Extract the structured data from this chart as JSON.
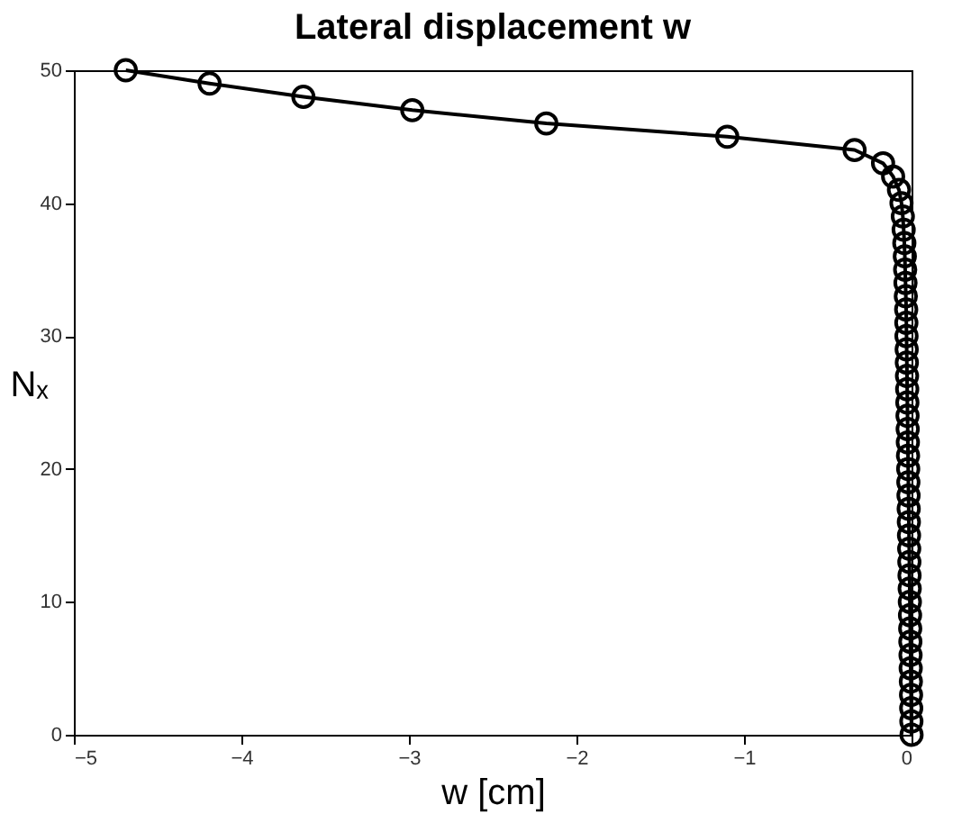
{
  "chart_data": {
    "type": "line",
    "title": "Lateral displacement w",
    "xlabel": "w [cm]",
    "ylabel": "Nₓ",
    "x": [
      0.0,
      -0.001,
      -0.002,
      -0.003,
      -0.004,
      -0.005,
      -0.006,
      -0.007,
      -0.008,
      -0.009,
      -0.01,
      -0.011,
      -0.012,
      -0.013,
      -0.014,
      -0.015,
      -0.016,
      -0.017,
      -0.018,
      -0.019,
      -0.02,
      -0.021,
      -0.022,
      -0.023,
      -0.024,
      -0.025,
      -0.026,
      -0.027,
      -0.028,
      -0.029,
      -0.03,
      -0.031,
      -0.032,
      -0.034,
      -0.036,
      -0.038,
      -0.04,
      -0.043,
      -0.047,
      -0.052,
      -0.06,
      -0.075,
      -0.11,
      -0.17,
      -0.34,
      -1.1,
      -2.18,
      -2.98,
      -3.63,
      -4.19,
      -4.69
    ],
    "series": [
      {
        "color": "#000000",
        "values": [
          0,
          1,
          2,
          3,
          4,
          5,
          6,
          7,
          8,
          9,
          10,
          11,
          12,
          13,
          14,
          15,
          16,
          17,
          18,
          19,
          20,
          21,
          22,
          23,
          24,
          25,
          26,
          27,
          28,
          29,
          30,
          31,
          32,
          33,
          34,
          35,
          36,
          37,
          38,
          39,
          40,
          41,
          42,
          43,
          44,
          45,
          46,
          47,
          48,
          49,
          50
        ]
      }
    ],
    "xlim": [
      -5,
      0
    ],
    "xticks": [
      -5,
      -4,
      -3,
      -2,
      -1,
      0
    ],
    "ylim": [
      0,
      50
    ],
    "yticks": [
      0,
      10,
      20,
      30,
      40,
      50
    ],
    "grid": false,
    "legend": false,
    "marker": "circle",
    "line_style": "solid"
  }
}
